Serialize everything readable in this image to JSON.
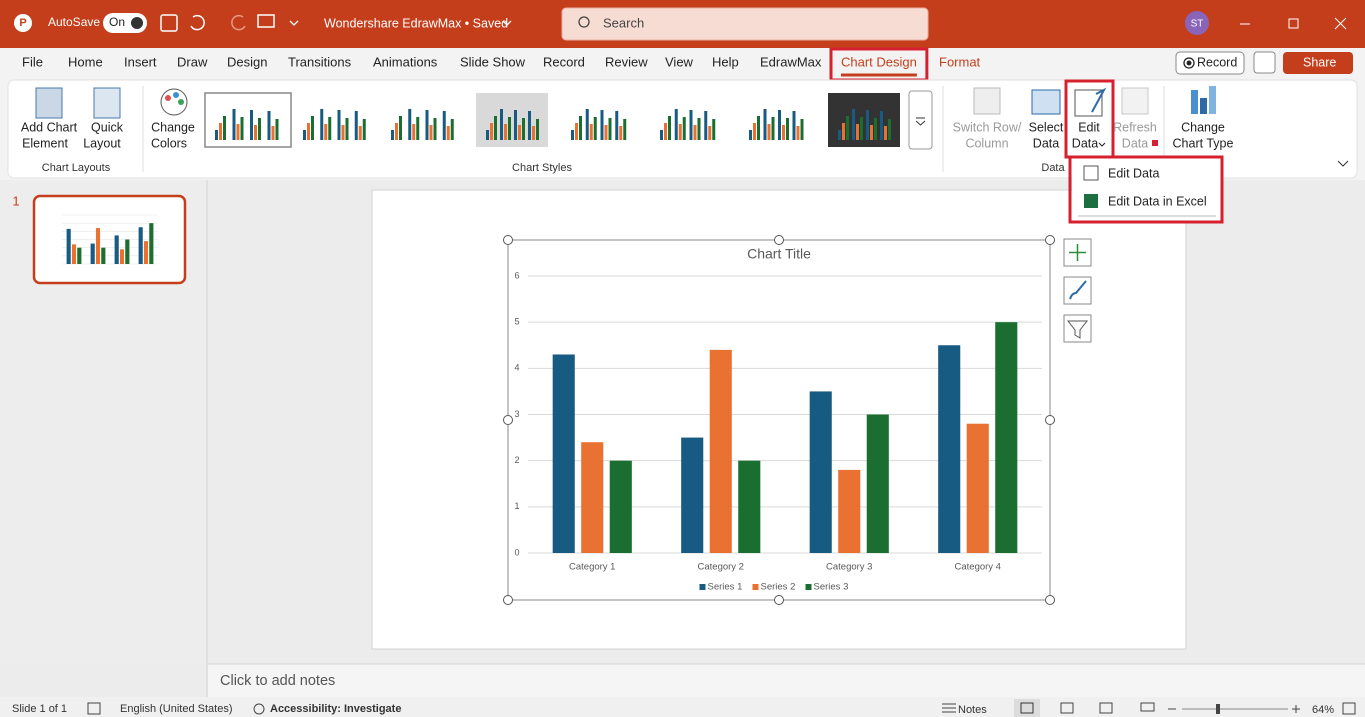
{
  "title_bar": {
    "autosave": "AutoSave",
    "toggle": "On",
    "document": "Wondershare EdrawMax • Saved",
    "search": "Search",
    "user": "ST"
  },
  "tabs": [
    "File",
    "Home",
    "Insert",
    "Draw",
    "Design",
    "Transitions",
    "Animations",
    "Slide Show",
    "Record",
    "Review",
    "View",
    "Help",
    "EdrawMax",
    "Chart Design",
    "Format"
  ],
  "selected_tab": 13,
  "tab_actions": {
    "record": "Record",
    "share": "Share"
  },
  "ribbon": {
    "add_chart_element": [
      "Add Chart",
      "Element"
    ],
    "quick_layout": [
      "Quick",
      "Layout"
    ],
    "chart_layouts_label": "Chart Layouts",
    "change_colors": [
      "Change",
      "Colors"
    ],
    "chart_styles_label": "Chart Styles",
    "switch_row_column": [
      "Switch Row/",
      "Column"
    ],
    "select_data": [
      "Select",
      "Data"
    ],
    "edit_data": [
      "Edit",
      "Data"
    ],
    "refresh_data": [
      "Refresh",
      "Data"
    ],
    "data_label": "Data",
    "change_chart_type": [
      "Change",
      "Chart Type"
    ]
  },
  "dropdown": {
    "items": [
      "Edit Data",
      "Edit Data in Excel"
    ]
  },
  "slide_panel": {
    "number": 1
  },
  "notes": "Click to add notes",
  "status_bar": {
    "slide": "Slide 1 of 1",
    "language": "English (United States)",
    "accessibility": "Accessibility: Investigate",
    "notes": "Notes",
    "zoom": "64%"
  },
  "chart_data": {
    "type": "bar",
    "title": "Chart Title",
    "categories": [
      "Category 1",
      "Category 2",
      "Category 3",
      "Category 4"
    ],
    "series": [
      {
        "name": "Series 1",
        "color": "#185b82",
        "values": [
          4.3,
          2.5,
          3.5,
          4.5
        ]
      },
      {
        "name": "Series 2",
        "color": "#e97132",
        "values": [
          2.4,
          4.4,
          1.8,
          2.8
        ]
      },
      {
        "name": "Series 3",
        "color": "#1a6f30",
        "values": [
          2,
          2,
          3,
          5
        ]
      }
    ],
    "ylim": [
      0,
      6
    ],
    "yticks": [
      0,
      1,
      2,
      3,
      4,
      5,
      6
    ],
    "grid": true,
    "legend": "bottom"
  }
}
